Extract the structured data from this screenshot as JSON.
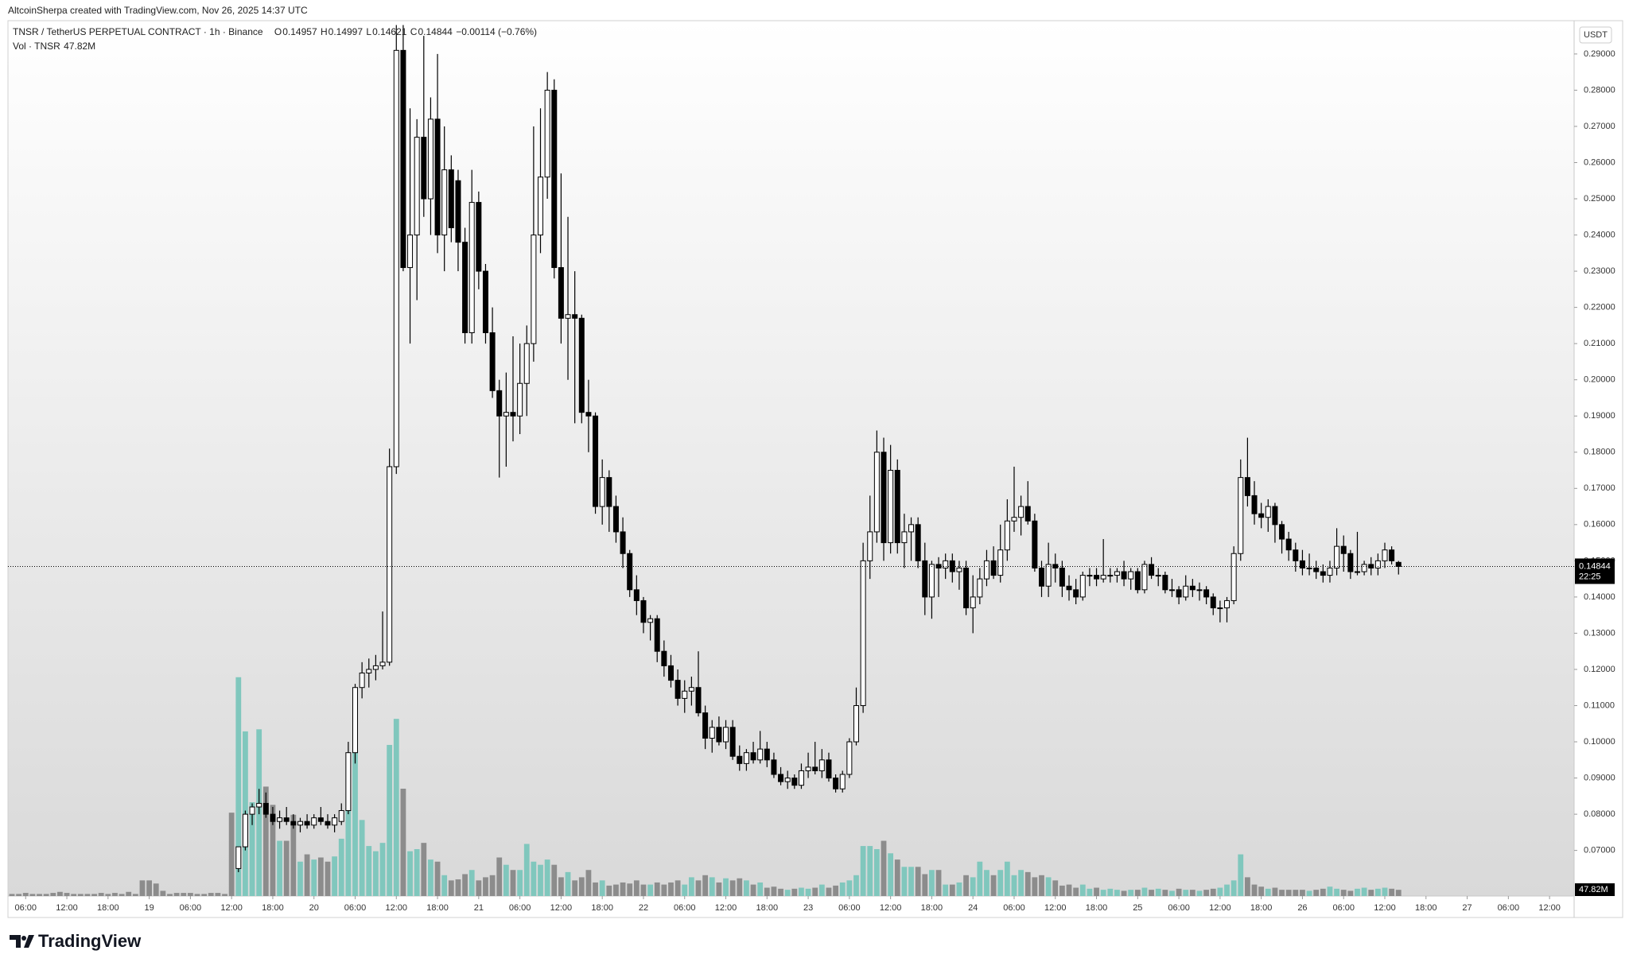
{
  "chart_data": {
    "type": "candlestick",
    "watermark": "AltcoinSherpa created with TradingView.com, Nov 26, 2025 14:37 UTC",
    "title": "TNSR / TetherUS PERPETUAL CONTRACT · 1h · Binance",
    "ohlc_labels": [
      "O",
      "H",
      "L",
      "C"
    ],
    "change": "−0.00114 (−0.76%)",
    "volume_title": "Vol · TNSR",
    "volume_label": "47.82M",
    "currency": "USDT",
    "countdown": "22:25",
    "brand": "TradingView",
    "up_color": "#ffffff",
    "down_color": "#000000",
    "volume_up_color": "#80c7bd",
    "volume_down_color": "#8c8c8c",
    "categories": [
      null,
      null,
      "06:00",
      null,
      null,
      null,
      null,
      null,
      "12:00",
      null,
      null,
      null,
      null,
      null,
      "18:00",
      null,
      null,
      null,
      null,
      null,
      "19",
      null,
      null,
      null,
      null,
      null,
      "06:00",
      null,
      null,
      null,
      null,
      null,
      "12:00",
      null,
      null,
      null,
      null,
      null,
      "18:00",
      null,
      null,
      null,
      null,
      null,
      "20",
      null,
      null,
      null,
      null,
      null,
      "06:00",
      null,
      null,
      null,
      null,
      null,
      "12:00",
      null,
      null,
      null,
      null,
      null,
      "18:00",
      null,
      null,
      null,
      null,
      null,
      "21",
      null,
      null,
      null,
      null,
      null,
      "06:00",
      null,
      null,
      null,
      null,
      null,
      "12:00",
      null,
      null,
      null,
      null,
      null,
      "18:00",
      null,
      null,
      null,
      null,
      null,
      "22",
      null,
      null,
      null,
      null,
      null,
      "06:00",
      null,
      null,
      null,
      null,
      null,
      "12:00",
      null,
      null,
      null,
      null,
      null,
      "18:00",
      null,
      null,
      null,
      null,
      null,
      "23",
      null,
      null,
      null,
      null,
      null,
      "06:00",
      null,
      null,
      null,
      null,
      null,
      "12:00",
      null,
      null,
      null,
      null,
      null,
      "18:00",
      null,
      null,
      null,
      null,
      null,
      "24",
      null,
      null,
      null,
      null,
      null,
      "06:00",
      null,
      null,
      null,
      null,
      null,
      "12:00",
      null,
      null,
      null,
      null,
      null,
      "18:00",
      null,
      null,
      null,
      null,
      null,
      "25",
      null,
      null,
      null,
      null,
      null,
      "06:00",
      null,
      null,
      null,
      null,
      null,
      "12:00",
      null,
      null,
      null,
      null,
      null,
      "18:00",
      null,
      null,
      null,
      null,
      null,
      "26",
      null,
      null,
      null,
      null,
      null,
      "06:00",
      null,
      null,
      null,
      null,
      null,
      "12:00",
      null,
      null,
      null,
      null,
      null,
      "18:00",
      null,
      null,
      null,
      null,
      null,
      "27",
      null,
      null,
      null,
      null,
      null,
      "06:00",
      null,
      null,
      null,
      null,
      null,
      "12:00",
      null,
      null,
      null
    ],
    "open": [
      null,
      null,
      null,
      null,
      null,
      null,
      null,
      null,
      null,
      null,
      null,
      null,
      null,
      null,
      null,
      null,
      null,
      null,
      null,
      null,
      null,
      null,
      null,
      null,
      null,
      null,
      null,
      null,
      null,
      null,
      null,
      null,
      null,
      0.065,
      0.071,
      0.08,
      0.082,
      0.083,
      0.08,
      0.078,
      0.079,
      0.078,
      0.077,
      0.078,
      0.077,
      0.079,
      0.078,
      0.077,
      0.078,
      0.081,
      0.097,
      0.115,
      0.119,
      0.12,
      0.121,
      0.122,
      0.176,
      0.291,
      0.231,
      0.24,
      0.267,
      0.25,
      0.272,
      0.24,
      0.258,
      0.255,
      0.238,
      0.213,
      0.249,
      0.23,
      0.213,
      0.197,
      0.19,
      0.191,
      0.19,
      0.199,
      0.21,
      0.24,
      0.256,
      0.28,
      0.231,
      0.217,
      0.218,
      0.217,
      0.191,
      0.19,
      0.165,
      0.173,
      0.165,
      0.158,
      0.152,
      0.142,
      0.139,
      0.133,
      0.134,
      0.125,
      0.121,
      0.117,
      0.112,
      0.114,
      0.115,
      0.108,
      0.101,
      0.104,
      0.1,
      0.104,
      0.096,
      0.094,
      0.097,
      0.095,
      0.098,
      0.095,
      0.091,
      0.089,
      0.09,
      0.088,
      0.092,
      0.093,
      0.092,
      0.095,
      0.09,
      0.087,
      0.091,
      0.1,
      0.11,
      0.15,
      0.158,
      0.18,
      0.155,
      0.175,
      0.155,
      0.158,
      0.16,
      0.15,
      0.14,
      0.149,
      0.148,
      0.15,
      0.147,
      0.148,
      0.137,
      0.14,
      0.145,
      0.15,
      0.146,
      0.153,
      0.161,
      0.162,
      0.165,
      0.161,
      0.148,
      0.143,
      0.149,
      0.148,
      0.143,
      0.142,
      0.14,
      0.146,
      0.146,
      0.145,
      0.146,
      0.146,
      0.147,
      0.145,
      0.147,
      0.142,
      0.149,
      0.146,
      0.146,
      0.142,
      0.142,
      0.14,
      0.143,
      0.142,
      0.142,
      0.14,
      0.137,
      0.137,
      0.139,
      0.152,
      0.173,
      0.168,
      0.163,
      0.162,
      0.165,
      0.16,
      0.156,
      0.153,
      0.15,
      0.148,
      0.148,
      0.147,
      0.146,
      0.148,
      0.154,
      0.152,
      0.147,
      0.147,
      0.149,
      0.148,
      0.15,
      0.153,
      0.14957,
      null,
      null,
      null,
      null,
      null,
      null,
      null,
      null,
      null,
      null,
      null,
      null,
      null,
      null,
      null,
      null,
      null,
      null,
      null,
      null,
      null,
      null,
      null,
      null,
      null
    ],
    "high": [
      null,
      null,
      null,
      null,
      null,
      null,
      null,
      null,
      null,
      null,
      null,
      null,
      null,
      null,
      null,
      null,
      null,
      null,
      null,
      null,
      null,
      null,
      null,
      null,
      null,
      null,
      null,
      null,
      null,
      null,
      null,
      null,
      null,
      0.071,
      0.081,
      0.083,
      0.087,
      0.086,
      0.082,
      0.081,
      0.082,
      0.08,
      0.079,
      0.08,
      0.08,
      0.082,
      0.08,
      0.08,
      0.083,
      0.1,
      0.116,
      0.122,
      0.123,
      0.124,
      0.136,
      0.181,
      0.298,
      0.298,
      0.275,
      0.272,
      0.295,
      0.278,
      0.29,
      0.27,
      0.262,
      0.258,
      0.242,
      0.258,
      0.252,
      0.232,
      0.22,
      0.2,
      0.202,
      0.212,
      0.21,
      0.215,
      0.27,
      0.275,
      0.285,
      0.283,
      0.257,
      0.245,
      0.23,
      0.218,
      0.2,
      0.191,
      0.178,
      0.175,
      0.168,
      0.162,
      0.153,
      0.146,
      0.14,
      0.135,
      0.135,
      0.128,
      0.124,
      0.12,
      0.117,
      0.118,
      0.125,
      0.11,
      0.106,
      0.107,
      0.106,
      0.106,
      0.099,
      0.098,
      0.1,
      0.103,
      0.1,
      0.097,
      0.093,
      0.092,
      0.091,
      0.094,
      0.097,
      0.1,
      0.098,
      0.097,
      0.091,
      0.092,
      0.101,
      0.115,
      0.155,
      0.168,
      0.186,
      0.184,
      0.182,
      0.178,
      0.163,
      0.162,
      0.162,
      0.155,
      0.15,
      0.151,
      0.152,
      0.152,
      0.15,
      0.15,
      0.146,
      0.148,
      0.153,
      0.154,
      0.16,
      0.167,
      0.176,
      0.168,
      0.172,
      0.163,
      0.15,
      0.155,
      0.152,
      0.15,
      0.146,
      0.145,
      0.147,
      0.148,
      0.148,
      0.156,
      0.148,
      0.148,
      0.15,
      0.148,
      0.148,
      0.15,
      0.151,
      0.148,
      0.147,
      0.145,
      0.143,
      0.146,
      0.145,
      0.144,
      0.143,
      0.141,
      0.139,
      0.14,
      0.154,
      0.178,
      0.184,
      0.172,
      0.166,
      0.167,
      0.166,
      0.161,
      0.158,
      0.155,
      0.153,
      0.152,
      0.15,
      0.149,
      0.15,
      0.159,
      0.157,
      0.153,
      0.158,
      0.15,
      0.151,
      0.152,
      0.155,
      0.154,
      0.14997,
      null,
      null,
      null,
      null,
      null,
      null,
      null,
      null,
      null,
      null,
      null,
      null,
      null,
      null,
      null,
      null,
      null,
      null,
      null,
      null,
      null,
      null,
      null,
      null,
      null
    ],
    "low": [
      null,
      null,
      null,
      null,
      null,
      null,
      null,
      null,
      null,
      null,
      null,
      null,
      null,
      null,
      null,
      null,
      null,
      null,
      null,
      null,
      null,
      null,
      null,
      null,
      null,
      null,
      null,
      null,
      null,
      null,
      null,
      null,
      null,
      0.064,
      0.07,
      0.077,
      0.08,
      0.079,
      0.077,
      0.076,
      0.077,
      0.076,
      0.075,
      0.076,
      0.076,
      0.077,
      0.076,
      0.075,
      0.077,
      0.08,
      0.094,
      0.112,
      0.115,
      0.117,
      0.12,
      0.121,
      0.174,
      0.23,
      0.21,
      0.222,
      0.245,
      0.24,
      0.235,
      0.23,
      0.238,
      0.23,
      0.21,
      0.21,
      0.225,
      0.21,
      0.195,
      0.173,
      0.176,
      0.183,
      0.185,
      0.19,
      0.205,
      0.235,
      0.25,
      0.228,
      0.21,
      0.2,
      0.188,
      0.188,
      0.18,
      0.163,
      0.16,
      0.158,
      0.155,
      0.148,
      0.14,
      0.135,
      0.13,
      0.128,
      0.122,
      0.118,
      0.115,
      0.11,
      0.108,
      0.11,
      0.107,
      0.098,
      0.097,
      0.099,
      0.098,
      0.095,
      0.092,
      0.092,
      0.094,
      0.094,
      0.093,
      0.09,
      0.088,
      0.087,
      0.087,
      0.087,
      0.09,
      0.091,
      0.09,
      0.089,
      0.086,
      0.086,
      0.09,
      0.099,
      0.108,
      0.145,
      0.155,
      0.15,
      0.152,
      0.152,
      0.148,
      0.15,
      0.148,
      0.135,
      0.134,
      0.14,
      0.145,
      0.144,
      0.142,
      0.135,
      0.13,
      0.138,
      0.143,
      0.145,
      0.144,
      0.15,
      0.158,
      0.157,
      0.16,
      0.147,
      0.14,
      0.14,
      0.144,
      0.14,
      0.139,
      0.138,
      0.139,
      0.143,
      0.143,
      0.144,
      0.144,
      0.144,
      0.143,
      0.142,
      0.141,
      0.141,
      0.145,
      0.143,
      0.141,
      0.14,
      0.138,
      0.139,
      0.14,
      0.139,
      0.138,
      0.135,
      0.133,
      0.133,
      0.138,
      0.15,
      0.165,
      0.16,
      0.159,
      0.158,
      0.155,
      0.152,
      0.15,
      0.147,
      0.146,
      0.146,
      0.145,
      0.144,
      0.144,
      0.146,
      0.147,
      0.145,
      0.146,
      0.146,
      0.146,
      0.146,
      0.148,
      0.149,
      0.14621,
      null,
      null,
      null,
      null,
      null,
      null,
      null,
      null,
      null,
      null,
      null,
      null,
      null,
      null,
      null,
      null,
      null,
      null,
      null,
      null,
      null,
      null,
      null,
      null,
      null
    ],
    "close": [
      null,
      null,
      null,
      null,
      null,
      null,
      null,
      null,
      null,
      null,
      null,
      null,
      null,
      null,
      null,
      null,
      null,
      null,
      null,
      null,
      null,
      null,
      null,
      null,
      null,
      null,
      null,
      null,
      null,
      null,
      null,
      null,
      null,
      0.071,
      0.08,
      0.082,
      0.083,
      0.08,
      0.078,
      0.079,
      0.078,
      0.077,
      0.078,
      0.077,
      0.079,
      0.078,
      0.077,
      0.079,
      0.081,
      0.097,
      0.115,
      0.119,
      0.12,
      0.121,
      0.122,
      0.176,
      0.291,
      0.231,
      0.24,
      0.267,
      0.25,
      0.272,
      0.24,
      0.258,
      0.242,
      0.238,
      0.213,
      0.249,
      0.23,
      0.213,
      0.197,
      0.19,
      0.191,
      0.19,
      0.199,
      0.21,
      0.24,
      0.256,
      0.28,
      0.231,
      0.217,
      0.218,
      0.217,
      0.191,
      0.19,
      0.165,
      0.173,
      0.165,
      0.158,
      0.152,
      0.142,
      0.139,
      0.133,
      0.134,
      0.125,
      0.121,
      0.117,
      0.112,
      0.114,
      0.115,
      0.108,
      0.101,
      0.104,
      0.1,
      0.104,
      0.096,
      0.094,
      0.097,
      0.095,
      0.098,
      0.095,
      0.091,
      0.089,
      0.09,
      0.088,
      0.092,
      0.093,
      0.092,
      0.095,
      0.09,
      0.087,
      0.091,
      0.1,
      0.11,
      0.15,
      0.158,
      0.18,
      0.155,
      0.175,
      0.155,
      0.158,
      0.16,
      0.15,
      0.14,
      0.149,
      0.148,
      0.15,
      0.147,
      0.148,
      0.137,
      0.14,
      0.145,
      0.15,
      0.146,
      0.153,
      0.161,
      0.162,
      0.165,
      0.161,
      0.148,
      0.143,
      0.149,
      0.148,
      0.143,
      0.142,
      0.14,
      0.146,
      0.146,
      0.145,
      0.146,
      0.146,
      0.147,
      0.145,
      0.147,
      0.142,
      0.149,
      0.146,
      0.146,
      0.142,
      0.142,
      0.14,
      0.143,
      0.142,
      0.142,
      0.14,
      0.137,
      0.137,
      0.139,
      0.152,
      0.173,
      0.168,
      0.163,
      0.162,
      0.165,
      0.16,
      0.156,
      0.153,
      0.15,
      0.148,
      0.148,
      0.147,
      0.146,
      0.148,
      0.154,
      0.152,
      0.147,
      0.147,
      0.149,
      0.148,
      0.15,
      0.153,
      0.15,
      0.14844,
      null,
      null,
      null,
      null,
      null,
      null,
      null,
      null,
      null,
      null,
      null,
      null,
      null,
      null,
      null,
      null,
      null,
      null,
      null,
      null,
      null,
      null,
      null,
      null,
      null
    ],
    "volume": [
      16,
      16,
      24,
      16,
      16,
      16,
      24,
      32,
      24,
      16,
      16,
      16,
      16,
      24,
      16,
      24,
      16,
      32,
      16,
      120,
      120,
      96,
      40,
      16,
      24,
      24,
      24,
      16,
      16,
      24,
      24,
      16,
      640,
      1680,
      1264,
      720,
      1280,
      840,
      700,
      424,
      424,
      624,
      264,
      320,
      280,
      296,
      264,
      304,
      440,
      760,
      1128,
      584,
      384,
      344,
      408,
      1160,
      1360,
      824,
      344,
      360,
      408,
      280,
      264,
      160,
      120,
      128,
      168,
      200,
      120,
      144,
      160,
      296,
      240,
      200,
      200,
      400,
      264,
      240,
      280,
      240,
      144,
      184,
      120,
      144,
      200,
      104,
      120,
      80,
      88,
      104,
      96,
      120,
      88,
      88,
      104,
      88,
      104,
      120,
      88,
      144,
      120,
      160,
      144,
      104,
      136,
      120,
      136,
      120,
      88,
      104,
      64,
      72,
      56,
      48,
      56,
      64,
      56,
      64,
      88,
      64,
      80,
      104,
      120,
      160,
      384,
      384,
      360,
      424,
      328,
      280,
      224,
      224,
      224,
      168,
      200,
      200,
      88,
      88,
      104,
      160,
      144,
      264,
      200,
      160,
      200,
      264,
      160,
      200,
      184,
      144,
      160,
      144,
      120,
      80,
      88,
      64,
      88,
      56,
      64,
      48,
      56,
      48,
      40,
      48,
      48,
      64,
      48,
      56,
      48,
      40,
      56,
      48,
      48,
      40,
      48,
      56,
      64,
      88,
      120,
      320,
      144,
      88,
      72,
      56,
      64,
      48,
      48,
      48,
      48,
      40,
      48,
      56,
      72,
      56,
      48,
      40,
      56,
      64,
      48,
      56,
      64,
      56,
      47.82,
      null,
      null,
      null,
      null,
      null,
      null,
      null,
      null,
      null,
      null,
      null,
      null,
      null,
      null,
      null,
      null,
      null,
      null,
      null,
      null,
      null,
      null,
      null,
      null,
      null
    ],
    "ylim": [
      0.0574,
      0.2992
    ],
    "yticks": [
      {
        "value": 0.07,
        "label": "0.07000"
      },
      {
        "value": 0.08,
        "label": "0.08000"
      },
      {
        "value": 0.09,
        "label": "0.09000"
      },
      {
        "value": 0.1,
        "label": "0.10000"
      },
      {
        "value": 0.11,
        "label": "0.11000"
      },
      {
        "value": 0.12,
        "label": "0.12000"
      },
      {
        "value": 0.13,
        "label": "0.13000"
      },
      {
        "value": 0.14,
        "label": "0.14000"
      },
      {
        "value": 0.15,
        "label": "0.15000"
      },
      {
        "value": 0.16,
        "label": "0.16000"
      },
      {
        "value": 0.17,
        "label": "0.17000"
      },
      {
        "value": 0.18,
        "label": "0.18000"
      },
      {
        "value": 0.19,
        "label": "0.19000"
      },
      {
        "value": 0.2,
        "label": "0.20000"
      },
      {
        "value": 0.21,
        "label": "0.21000"
      },
      {
        "value": 0.22,
        "label": "0.22000"
      },
      {
        "value": 0.23,
        "label": "0.23000"
      },
      {
        "value": 0.24,
        "label": "0.24000"
      },
      {
        "value": 0.25,
        "label": "0.25000"
      },
      {
        "value": 0.26,
        "label": "0.26000"
      },
      {
        "value": 0.27,
        "label": "0.27000"
      },
      {
        "value": 0.28,
        "label": "0.28000"
      },
      {
        "value": 0.29,
        "label": "0.29000"
      }
    ]
  }
}
